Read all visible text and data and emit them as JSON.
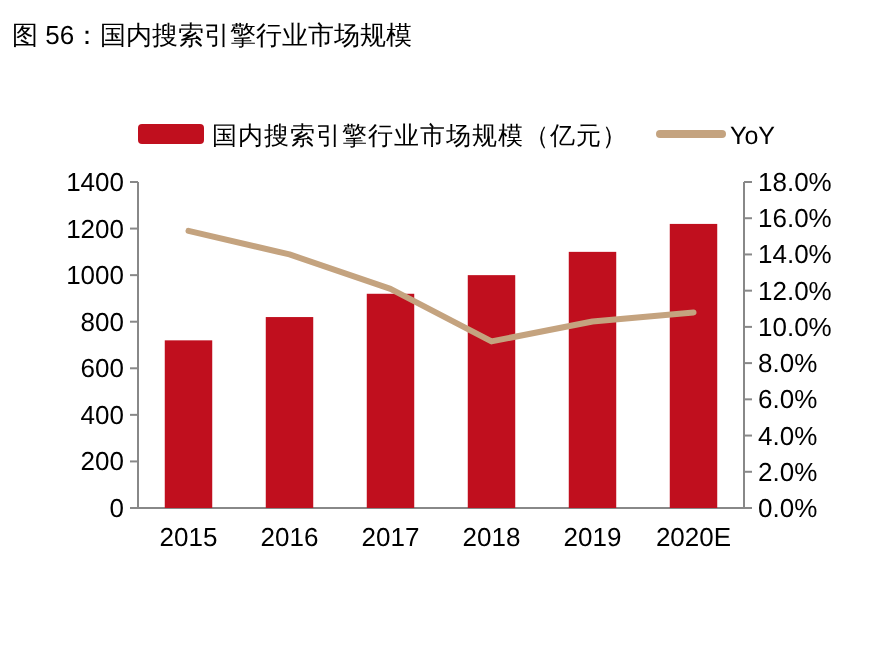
{
  "chart_data": {
    "type": "bar",
    "title": "图 56：国内搜索引擎行业市场规模",
    "categories": [
      "2015",
      "2016",
      "2017",
      "2018",
      "2019",
      "2020E"
    ],
    "series": [
      {
        "name": "国内搜索引擎行业市场规模（亿元）",
        "color": "#c00f1e",
        "values": [
          720,
          820,
          920,
          1000,
          1100,
          1220
        ]
      },
      {
        "name": "YoY",
        "type": "line",
        "axis": "y2",
        "color": "#c4a37f",
        "values": [
          15.3,
          14.0,
          12.1,
          9.2,
          10.3,
          10.8
        ]
      }
    ],
    "ylim": [
      0,
      1400
    ],
    "yticks": [
      0,
      200,
      400,
      600,
      800,
      1000,
      1200,
      1400
    ],
    "y2lim": [
      0,
      18
    ],
    "y2ticks": [
      {
        "value": 0,
        "label": "0.0%"
      },
      {
        "value": 2,
        "label": "2.0%"
      },
      {
        "value": 4,
        "label": "4.0%"
      },
      {
        "value": 6,
        "label": "6.0%"
      },
      {
        "value": 8,
        "label": "8.0%"
      },
      {
        "value": 10,
        "label": "10.0%"
      },
      {
        "value": 12,
        "label": "12.0%"
      },
      {
        "value": 14,
        "label": "14.0%"
      },
      {
        "value": 16,
        "label": "16.0%"
      },
      {
        "value": 18,
        "label": "18.0%"
      }
    ],
    "legend": "top",
    "grid": false,
    "marker": "none",
    "line_style": "solid"
  }
}
